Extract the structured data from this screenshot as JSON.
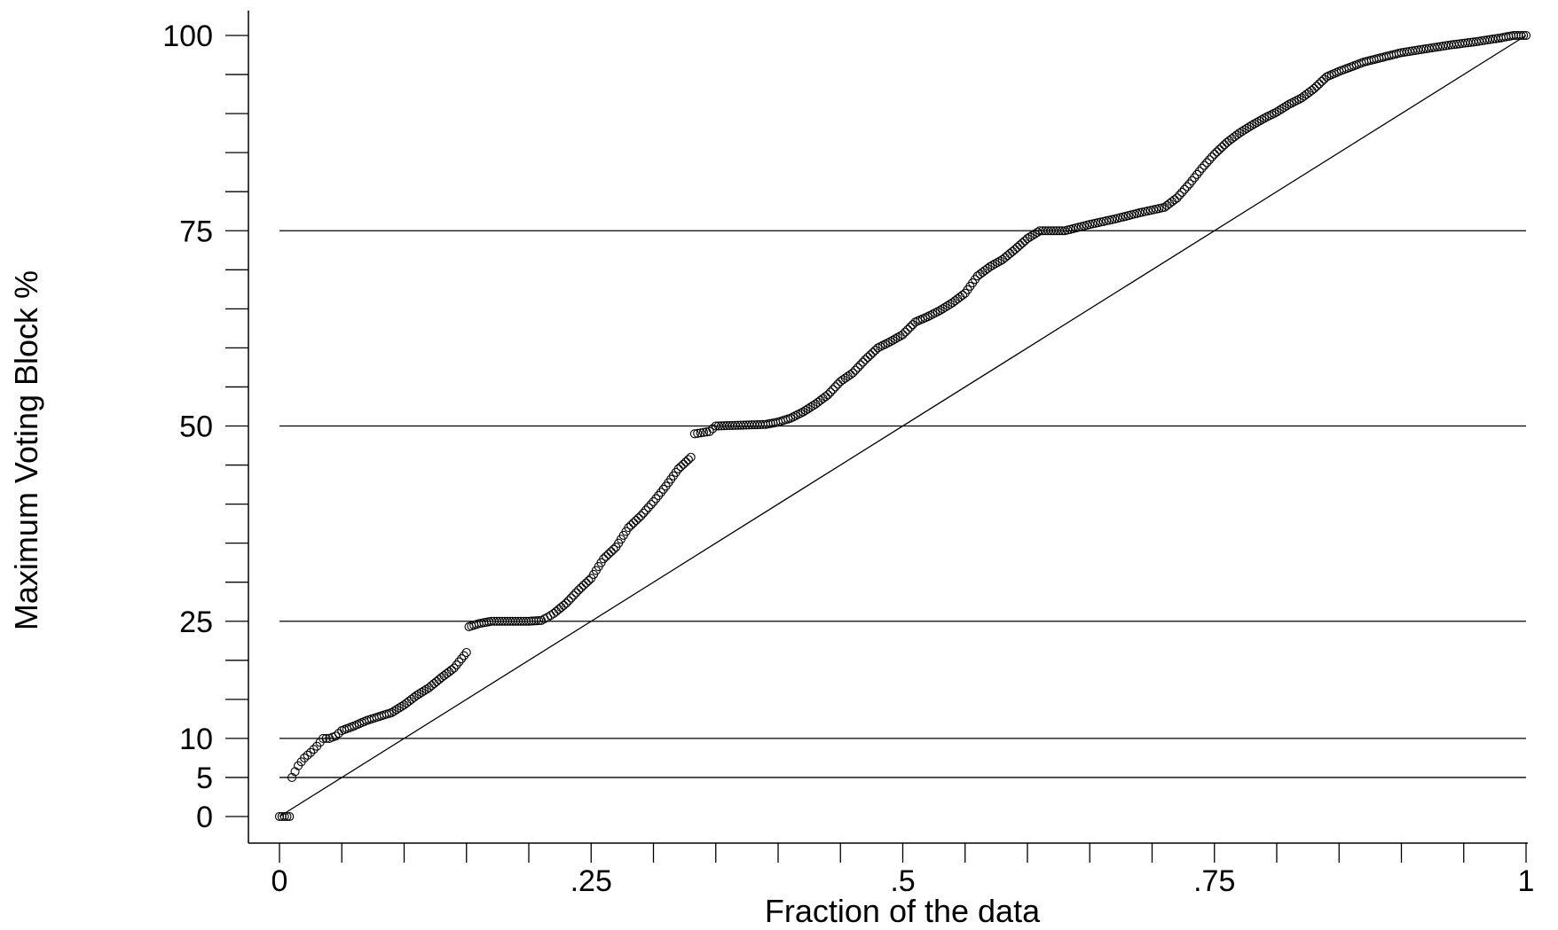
{
  "chart_data": {
    "type": "scatter",
    "title": "",
    "xlabel": "Fraction of the data",
    "ylabel": "Maximum Voting Block %",
    "xlim": [
      0,
      1
    ],
    "ylim": [
      0,
      100
    ],
    "x_tick_labels": [
      {
        "value": 0,
        "label": "0"
      },
      {
        "value": 0.25,
        "label": ".25"
      },
      {
        "value": 0.5,
        "label": ".5"
      },
      {
        "value": 0.75,
        "label": ".75"
      },
      {
        "value": 1,
        "label": "1"
      }
    ],
    "y_tick_labels": [
      {
        "value": 0,
        "label": "0"
      },
      {
        "value": 5,
        "label": "5"
      },
      {
        "value": 10,
        "label": "10"
      },
      {
        "value": 25,
        "label": "25"
      },
      {
        "value": 50,
        "label": "50"
      },
      {
        "value": 75,
        "label": "75"
      },
      {
        "value": 100,
        "label": "100"
      }
    ],
    "y_minor_ticks": [
      5,
      10,
      15,
      20,
      25,
      30,
      35,
      40,
      45,
      50,
      55,
      60,
      65,
      70,
      75,
      80,
      85,
      90,
      95,
      100
    ],
    "x_minor_ticks": [
      0,
      0.05,
      0.1,
      0.15,
      0.2,
      0.25,
      0.3,
      0.35,
      0.4,
      0.45,
      0.5,
      0.55,
      0.6,
      0.65,
      0.7,
      0.75,
      0.8,
      0.85,
      0.9,
      0.95,
      1
    ],
    "reference_lines_y": [
      5,
      10,
      25,
      50,
      75
    ],
    "diagonal_line": {
      "from": [
        0,
        0
      ],
      "to": [
        1,
        100
      ]
    },
    "grid": false,
    "legend": "none",
    "marker": "hollow-circle",
    "curve_points": [
      [
        0,
        0
      ],
      [
        0.008,
        0
      ],
      [
        0.01,
        5
      ],
      [
        0.015,
        6.5
      ],
      [
        0.02,
        7.5
      ],
      [
        0.025,
        8.2
      ],
      [
        0.03,
        9
      ],
      [
        0.035,
        10
      ],
      [
        0.04,
        10
      ],
      [
        0.045,
        10.3
      ],
      [
        0.05,
        11
      ],
      [
        0.06,
        11.6
      ],
      [
        0.07,
        12.3
      ],
      [
        0.08,
        12.8
      ],
      [
        0.09,
        13.3
      ],
      [
        0.1,
        14.3
      ],
      [
        0.11,
        15.5
      ],
      [
        0.12,
        16.5
      ],
      [
        0.13,
        17.8
      ],
      [
        0.14,
        19
      ],
      [
        0.15,
        21
      ],
      [
        0.152,
        24.3
      ],
      [
        0.16,
        24.7
      ],
      [
        0.17,
        25
      ],
      [
        0.2,
        25
      ],
      [
        0.21,
        25.1
      ],
      [
        0.215,
        25.5
      ],
      [
        0.22,
        26
      ],
      [
        0.23,
        27.3
      ],
      [
        0.24,
        29
      ],
      [
        0.25,
        30.5
      ],
      [
        0.26,
        33
      ],
      [
        0.27,
        34.5
      ],
      [
        0.28,
        37
      ],
      [
        0.29,
        38.5
      ],
      [
        0.3,
        40.3
      ],
      [
        0.31,
        42.3
      ],
      [
        0.32,
        44.5
      ],
      [
        0.33,
        46
      ],
      [
        0.333,
        49
      ],
      [
        0.345,
        49.3
      ],
      [
        0.35,
        50
      ],
      [
        0.39,
        50.2
      ],
      [
        0.4,
        50.5
      ],
      [
        0.41,
        51
      ],
      [
        0.42,
        51.8
      ],
      [
        0.43,
        52.8
      ],
      [
        0.44,
        54
      ],
      [
        0.45,
        55.7
      ],
      [
        0.46,
        56.8
      ],
      [
        0.47,
        58.5
      ],
      [
        0.48,
        60
      ],
      [
        0.49,
        60.8
      ],
      [
        0.5,
        61.7
      ],
      [
        0.51,
        63.3
      ],
      [
        0.52,
        64
      ],
      [
        0.53,
        64.8
      ],
      [
        0.54,
        65.8
      ],
      [
        0.55,
        67
      ],
      [
        0.56,
        69.2
      ],
      [
        0.57,
        70.4
      ],
      [
        0.58,
        71.3
      ],
      [
        0.59,
        72.6
      ],
      [
        0.6,
        74
      ],
      [
        0.61,
        75
      ],
      [
        0.63,
        75
      ],
      [
        0.65,
        75.8
      ],
      [
        0.67,
        76.5
      ],
      [
        0.69,
        77.3
      ],
      [
        0.71,
        78
      ],
      [
        0.72,
        79.2
      ],
      [
        0.73,
        81
      ],
      [
        0.74,
        83
      ],
      [
        0.75,
        84.8
      ],
      [
        0.76,
        86.3
      ],
      [
        0.77,
        87.5
      ],
      [
        0.78,
        88.5
      ],
      [
        0.79,
        89.4
      ],
      [
        0.8,
        90.2
      ],
      [
        0.81,
        91.2
      ],
      [
        0.82,
        92
      ],
      [
        0.83,
        93.2
      ],
      [
        0.84,
        94.7
      ],
      [
        0.85,
        95.4
      ],
      [
        0.86,
        96
      ],
      [
        0.87,
        96.6
      ],
      [
        0.88,
        97
      ],
      [
        0.89,
        97.4
      ],
      [
        0.9,
        97.8
      ],
      [
        0.92,
        98.3
      ],
      [
        0.94,
        98.8
      ],
      [
        0.96,
        99.2
      ],
      [
        0.98,
        99.7
      ],
      [
        0.99,
        100
      ],
      [
        1,
        100
      ]
    ]
  }
}
